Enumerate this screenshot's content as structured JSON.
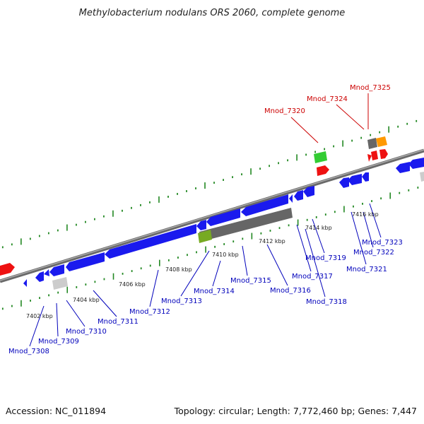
{
  "title": "Methylobacterium nodulans ORS 2060, complete genome",
  "footer": {
    "accession": "Accession: NC_011894",
    "stats": "Topology: circular; Length: 7,772,460 bp; Genes: 7,447"
  },
  "colors": {
    "blue_gene": "#1a1aee",
    "red_gene": "#ee1111",
    "gray_gene": "#777777",
    "light_gray_gene": "#cccccc",
    "green_gene": "#33cc33",
    "orange_gene": "#ff9900",
    "olive_gene": "#77aa22",
    "backbone": "#888888",
    "tick": "#228822",
    "forward_label": "#cc0000",
    "reverse_label": "#0000bb"
  },
  "ticks": [
    "7402 kbp",
    "7404 kbp",
    "7406 kbp",
    "7408 kbp",
    "7410 kbp",
    "7412 kbp",
    "7414 kbp",
    "7416 kbp"
  ],
  "forward_labels": [
    "Mnod_7320",
    "Mnod_7324",
    "Mnod_7325"
  ],
  "reverse_labels": [
    "Mnod_7308",
    "Mnod_7309",
    "Mnod_7310",
    "Mnod_7311",
    "Mnod_7312",
    "Mnod_7313",
    "Mnod_7314",
    "Mnod_7315",
    "Mnod_7316",
    "Mnod_7317",
    "Mnod_7318",
    "Mnod_7319",
    "Mnod_7321",
    "Mnod_7322",
    "Mnod_7323"
  ]
}
